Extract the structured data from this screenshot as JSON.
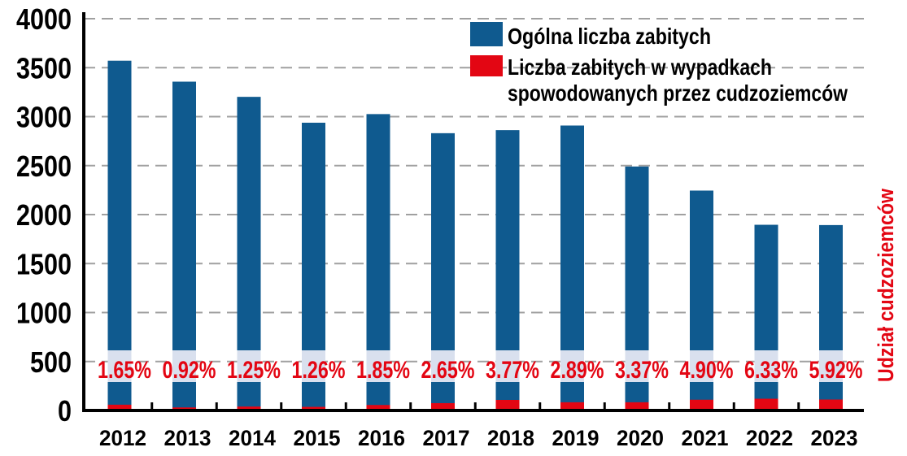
{
  "chart_data": {
    "type": "bar",
    "categories": [
      "2012",
      "2013",
      "2014",
      "2015",
      "2016",
      "2017",
      "2018",
      "2019",
      "2020",
      "2021",
      "2022",
      "2023"
    ],
    "series": [
      {
        "name": "Ogólna liczba zabitych",
        "color": "#0f5a8f",
        "values": [
          3571,
          3357,
          3202,
          2938,
          3026,
          2831,
          2862,
          2909,
          2491,
          2245,
          1896,
          1893
        ]
      },
      {
        "name": "Liczba zabitych w wypadkach spowodowanych przez cudzoziemców",
        "color": "#e30613",
        "values": [
          59,
          31,
          40,
          37,
          56,
          75,
          108,
          84,
          84,
          110,
          120,
          112
        ]
      }
    ],
    "data_labels": [
      "1.65%",
      "0.92%",
      "1.25%",
      "1.26%",
      "1.85%",
      "2.65%",
      "3.77%",
      "2.89%",
      "3.37%",
      "4.90%",
      "6.33%",
      "5.92%"
    ],
    "data_label_title": "Udział cudzoziemców",
    "yticks": [
      "0",
      "500",
      "1000",
      "1500",
      "2000",
      "2500",
      "3000",
      "3500",
      "4000"
    ],
    "ylim": [
      0,
      4000
    ],
    "grid": true,
    "legend": "top-right",
    "legend_lines": {
      "series0": [
        "Ogólna liczba zabitych"
      ],
      "series1": [
        "Liczba zabitych w wypadkach",
        "spowodowanych przez cudzoziemców"
      ]
    },
    "colors": {
      "label_bg": "#d9e0ee",
      "grid": "#a0a0a0",
      "label_text": "#e30613"
    }
  }
}
